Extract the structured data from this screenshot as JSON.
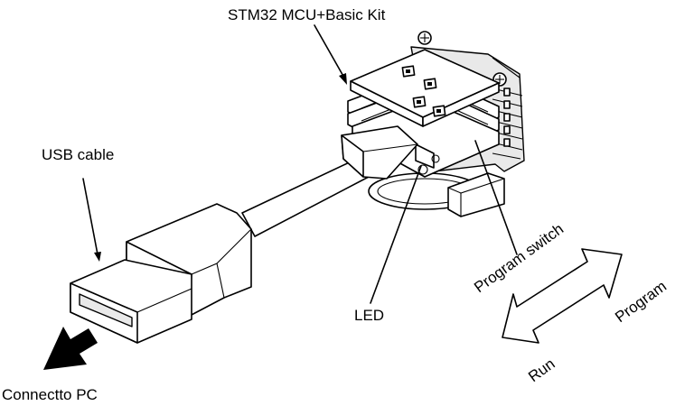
{
  "labels": {
    "kit": "STM32 MCU+Basic Kit",
    "usb_cable": "USB cable",
    "led": "LED",
    "program_switch": "Program switch",
    "program": "Program",
    "run": "Run",
    "connect_pc": "Connectto PC"
  },
  "icons": [
    "usb-plug-icon",
    "pc-direction-arrow-icon",
    "switch-direction-arrow-icon"
  ],
  "colors": {
    "line": "#000000",
    "background": "#ffffff",
    "fill": "#ffffff"
  }
}
